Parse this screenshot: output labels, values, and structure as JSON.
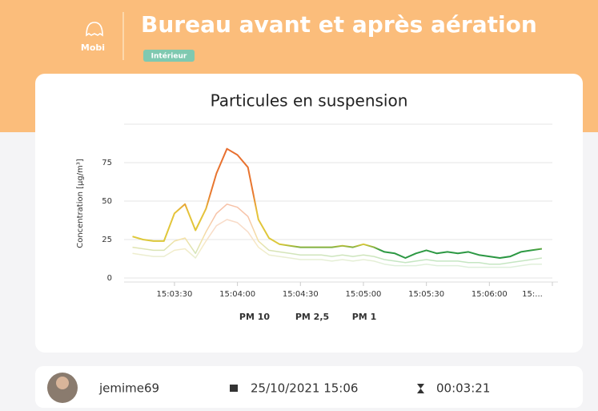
{
  "header": {
    "app": "Mobi",
    "title": "Bureau avant et après aération",
    "badge": "Intérieur"
  },
  "chart_data": {
    "type": "line",
    "title": "Particules en suspension",
    "y_label": "Concentration [µg/m³]",
    "x": [
      "15:03:10",
      "15:03:15",
      "15:03:20",
      "15:03:25",
      "15:03:30",
      "15:03:35",
      "15:03:40",
      "15:03:45",
      "15:03:50",
      "15:03:55",
      "15:04:00",
      "15:04:05",
      "15:04:10",
      "15:04:15",
      "15:04:20",
      "15:04:25",
      "15:04:30",
      "15:04:35",
      "15:04:40",
      "15:04:45",
      "15:04:50",
      "15:04:55",
      "15:05:00",
      "15:05:05",
      "15:05:10",
      "15:05:15",
      "15:05:20",
      "15:05:25",
      "15:05:30",
      "15:05:35",
      "15:05:40",
      "15:05:45",
      "15:05:50",
      "15:05:55",
      "15:06:00",
      "15:06:05",
      "15:06:10",
      "15:06:15",
      "15:06:20",
      "15:06:25"
    ],
    "series": [
      {
        "name": "PM 10",
        "color": "url(#g10)",
        "values": [
          27,
          25,
          24,
          24,
          42,
          48,
          31,
          45,
          68,
          84,
          80,
          72,
          38,
          26,
          22,
          21,
          20,
          20,
          20,
          20,
          21,
          20,
          22,
          20,
          17,
          16,
          13,
          16,
          18,
          16,
          17,
          16,
          17,
          15,
          14,
          13,
          14,
          17,
          18,
          19
        ]
      },
      {
        "name": "PM 2,5",
        "color": "url(#g25)",
        "values": [
          20,
          19,
          18,
          18,
          24,
          26,
          16,
          30,
          42,
          48,
          46,
          40,
          24,
          18,
          17,
          16,
          15,
          15,
          15,
          14,
          15,
          14,
          15,
          14,
          12,
          11,
          10,
          11,
          12,
          11,
          11,
          11,
          10,
          10,
          9,
          9,
          10,
          11,
          12,
          13
        ]
      },
      {
        "name": "PM 1",
        "color": "url(#g1)",
        "values": [
          16,
          15,
          14,
          14,
          18,
          19,
          13,
          24,
          34,
          38,
          36,
          30,
          20,
          15,
          14,
          13,
          12,
          12,
          12,
          11,
          12,
          11,
          12,
          11,
          9,
          8,
          8,
          8,
          9,
          8,
          8,
          8,
          7,
          7,
          7,
          7,
          7,
          8,
          9,
          9
        ]
      }
    ],
    "xlim": [
      "15:03:06",
      "15:06:30"
    ],
    "xticks": [
      "15:03:30",
      "15:04:00",
      "15:04:30",
      "15:05:00",
      "15:05:30",
      "15:06:00",
      {
        "value": "15:06:30",
        "label": "15:..."
      }
    ],
    "ylim": [
      0,
      100
    ],
    "yticks": [
      0,
      25,
      50,
      75
    ],
    "grid": true
  },
  "footer": {
    "user": "jemime69",
    "date": "25/10/2021 15:06",
    "duration": "00:03:21"
  }
}
